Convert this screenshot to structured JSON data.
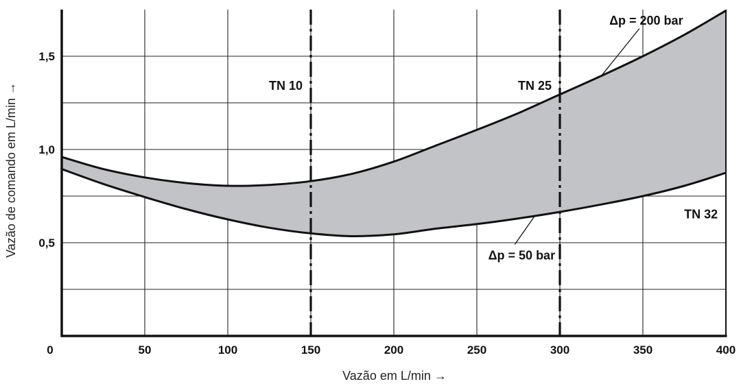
{
  "chart_data": {
    "type": "area",
    "xlabel": "Vazão em L/min →",
    "ylabel": "Vazão de comando em L/min →",
    "xlim": [
      0,
      400
    ],
    "ylim": [
      0,
      1.75
    ],
    "x_ticks": [
      0,
      50,
      100,
      150,
      200,
      250,
      300,
      350,
      400
    ],
    "x_tick_labels": [
      "0",
      "50",
      "100",
      "150",
      "200",
      "250",
      "300",
      "350",
      "400"
    ],
    "y_gridlines": [
      0.25,
      0.5,
      0.75,
      1.0,
      1.25,
      1.5
    ],
    "y_tick_values": [
      0.5,
      1.0,
      1.5
    ],
    "y_tick_labels": [
      "0,5",
      "1,0",
      "1,5"
    ],
    "grid": true,
    "fill_color": "#c1c3c7",
    "series": [
      {
        "name": "Δp = 200 bar",
        "x": [
          0,
          25,
          50,
          75,
          100,
          125,
          150,
          175,
          200,
          225,
          250,
          275,
          300,
          325,
          350,
          375,
          400
        ],
        "y": [
          0.96,
          0.895,
          0.85,
          0.82,
          0.805,
          0.81,
          0.83,
          0.87,
          0.935,
          1.02,
          1.105,
          1.195,
          1.295,
          1.395,
          1.5,
          1.615,
          1.745
        ]
      },
      {
        "name": "Δp = 50 bar",
        "x": [
          0,
          25,
          50,
          75,
          100,
          125,
          150,
          175,
          200,
          225,
          250,
          275,
          300,
          325,
          350,
          375,
          400
        ],
        "y": [
          0.895,
          0.815,
          0.745,
          0.68,
          0.625,
          0.58,
          0.55,
          0.535,
          0.545,
          0.575,
          0.6,
          0.63,
          0.665,
          0.705,
          0.75,
          0.805,
          0.875
        ]
      }
    ],
    "vertical_markers": [
      {
        "x": 150,
        "label": "TN 10"
      },
      {
        "x": 300,
        "label": "TN 25"
      }
    ],
    "annotations": [
      {
        "text": "TN 32",
        "x": 385,
        "y": 0.63
      },
      {
        "text": "Δp = 200 bar",
        "x": 352,
        "y": 1.67,
        "target_x": 325,
        "target_y": 1.395
      },
      {
        "text": "Δp = 50 bar",
        "x": 277,
        "y": 0.41,
        "target_x": 285,
        "target_y": 0.645
      }
    ]
  }
}
